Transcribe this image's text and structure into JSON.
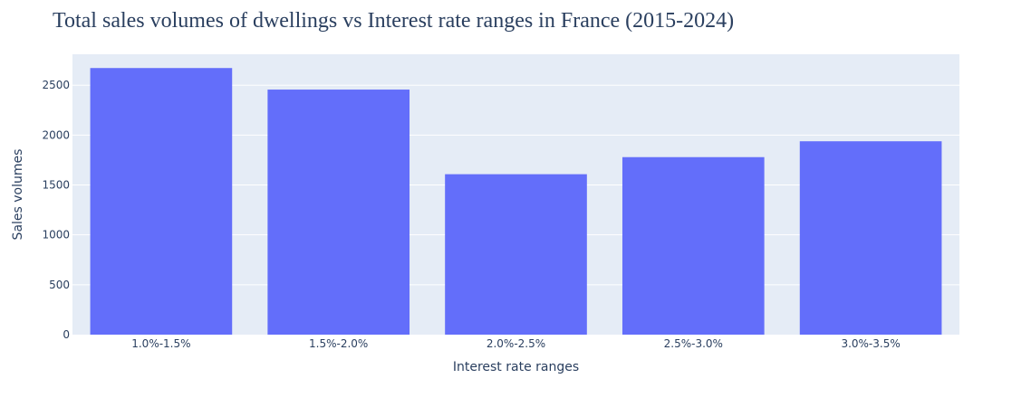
{
  "chart_data": {
    "type": "bar",
    "title": "Total sales volumes of dwellings vs Interest rate ranges in France (2015-2024)",
    "xlabel": "Interest rate ranges",
    "ylabel": "Sales volumes",
    "categories": [
      "1.0%-1.5%",
      "1.5%-2.0%",
      "2.0%-2.5%",
      "2.5%-3.0%",
      "3.0%-3.5%"
    ],
    "values": [
      2672,
      2456,
      1608,
      1779,
      1938
    ],
    "ylim": [
      0,
      2810
    ],
    "yticks": [
      0,
      500,
      1000,
      1500,
      2000,
      2500
    ],
    "grid": true,
    "legend": "none",
    "colors": {
      "bar": "#636efa",
      "plot_background": "#e5ecf6",
      "grid": "#ffffff",
      "text": "#2a3f5f"
    }
  }
}
